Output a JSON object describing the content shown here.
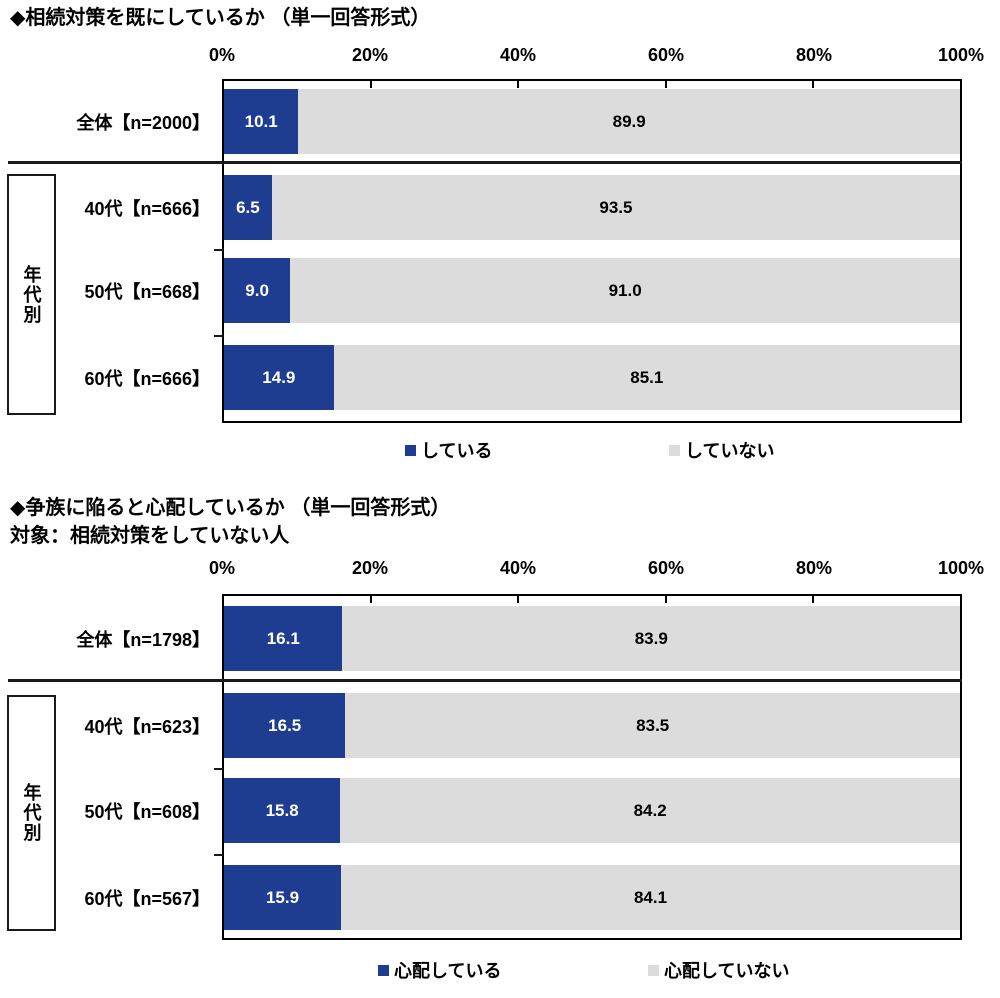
{
  "chart_data": [
    {
      "type": "bar",
      "orientation": "horizontal",
      "stacked": true,
      "title": "◆相続対策を既にしているか （単一回答形式）",
      "subtitle": "",
      "group_label": "年代別",
      "categories": [
        "全体【n=2000】",
        "40代【n=666】",
        "50代【n=668】",
        "60代【n=666】"
      ],
      "series": [
        {
          "name": "している",
          "color": "#1e3c90",
          "values": [
            "10.1",
            "6.5",
            "9.0",
            "14.9"
          ]
        },
        {
          "name": "していない",
          "color": "#dcdcdc",
          "values": [
            "89.9",
            "93.5",
            "91.0",
            "85.1"
          ]
        }
      ],
      "xlim": [
        0,
        100
      ],
      "x_tick_labels": [
        "0%",
        "20%",
        "40%",
        "60%",
        "80%",
        "100%"
      ],
      "grid": false,
      "legend_position": "bottom"
    },
    {
      "type": "bar",
      "orientation": "horizontal",
      "stacked": true,
      "title": "◆争族に陥ると心配しているか （単一回答形式）",
      "subtitle": "対象：相続対策をしていない人",
      "group_label": "年代別",
      "categories": [
        "全体【n=1798】",
        "40代【n=623】",
        "50代【n=608】",
        "60代【n=567】"
      ],
      "series": [
        {
          "name": "心配している",
          "color": "#1e3c90",
          "values": [
            "16.1",
            "16.5",
            "15.8",
            "15.9"
          ]
        },
        {
          "name": "心配していない",
          "color": "#dcdcdc",
          "values": [
            "83.9",
            "83.5",
            "84.2",
            "84.1"
          ]
        }
      ],
      "xlim": [
        0,
        100
      ],
      "x_tick_labels": [
        "0%",
        "20%",
        "40%",
        "60%",
        "80%",
        "100%"
      ],
      "grid": false,
      "legend_position": "bottom"
    }
  ]
}
